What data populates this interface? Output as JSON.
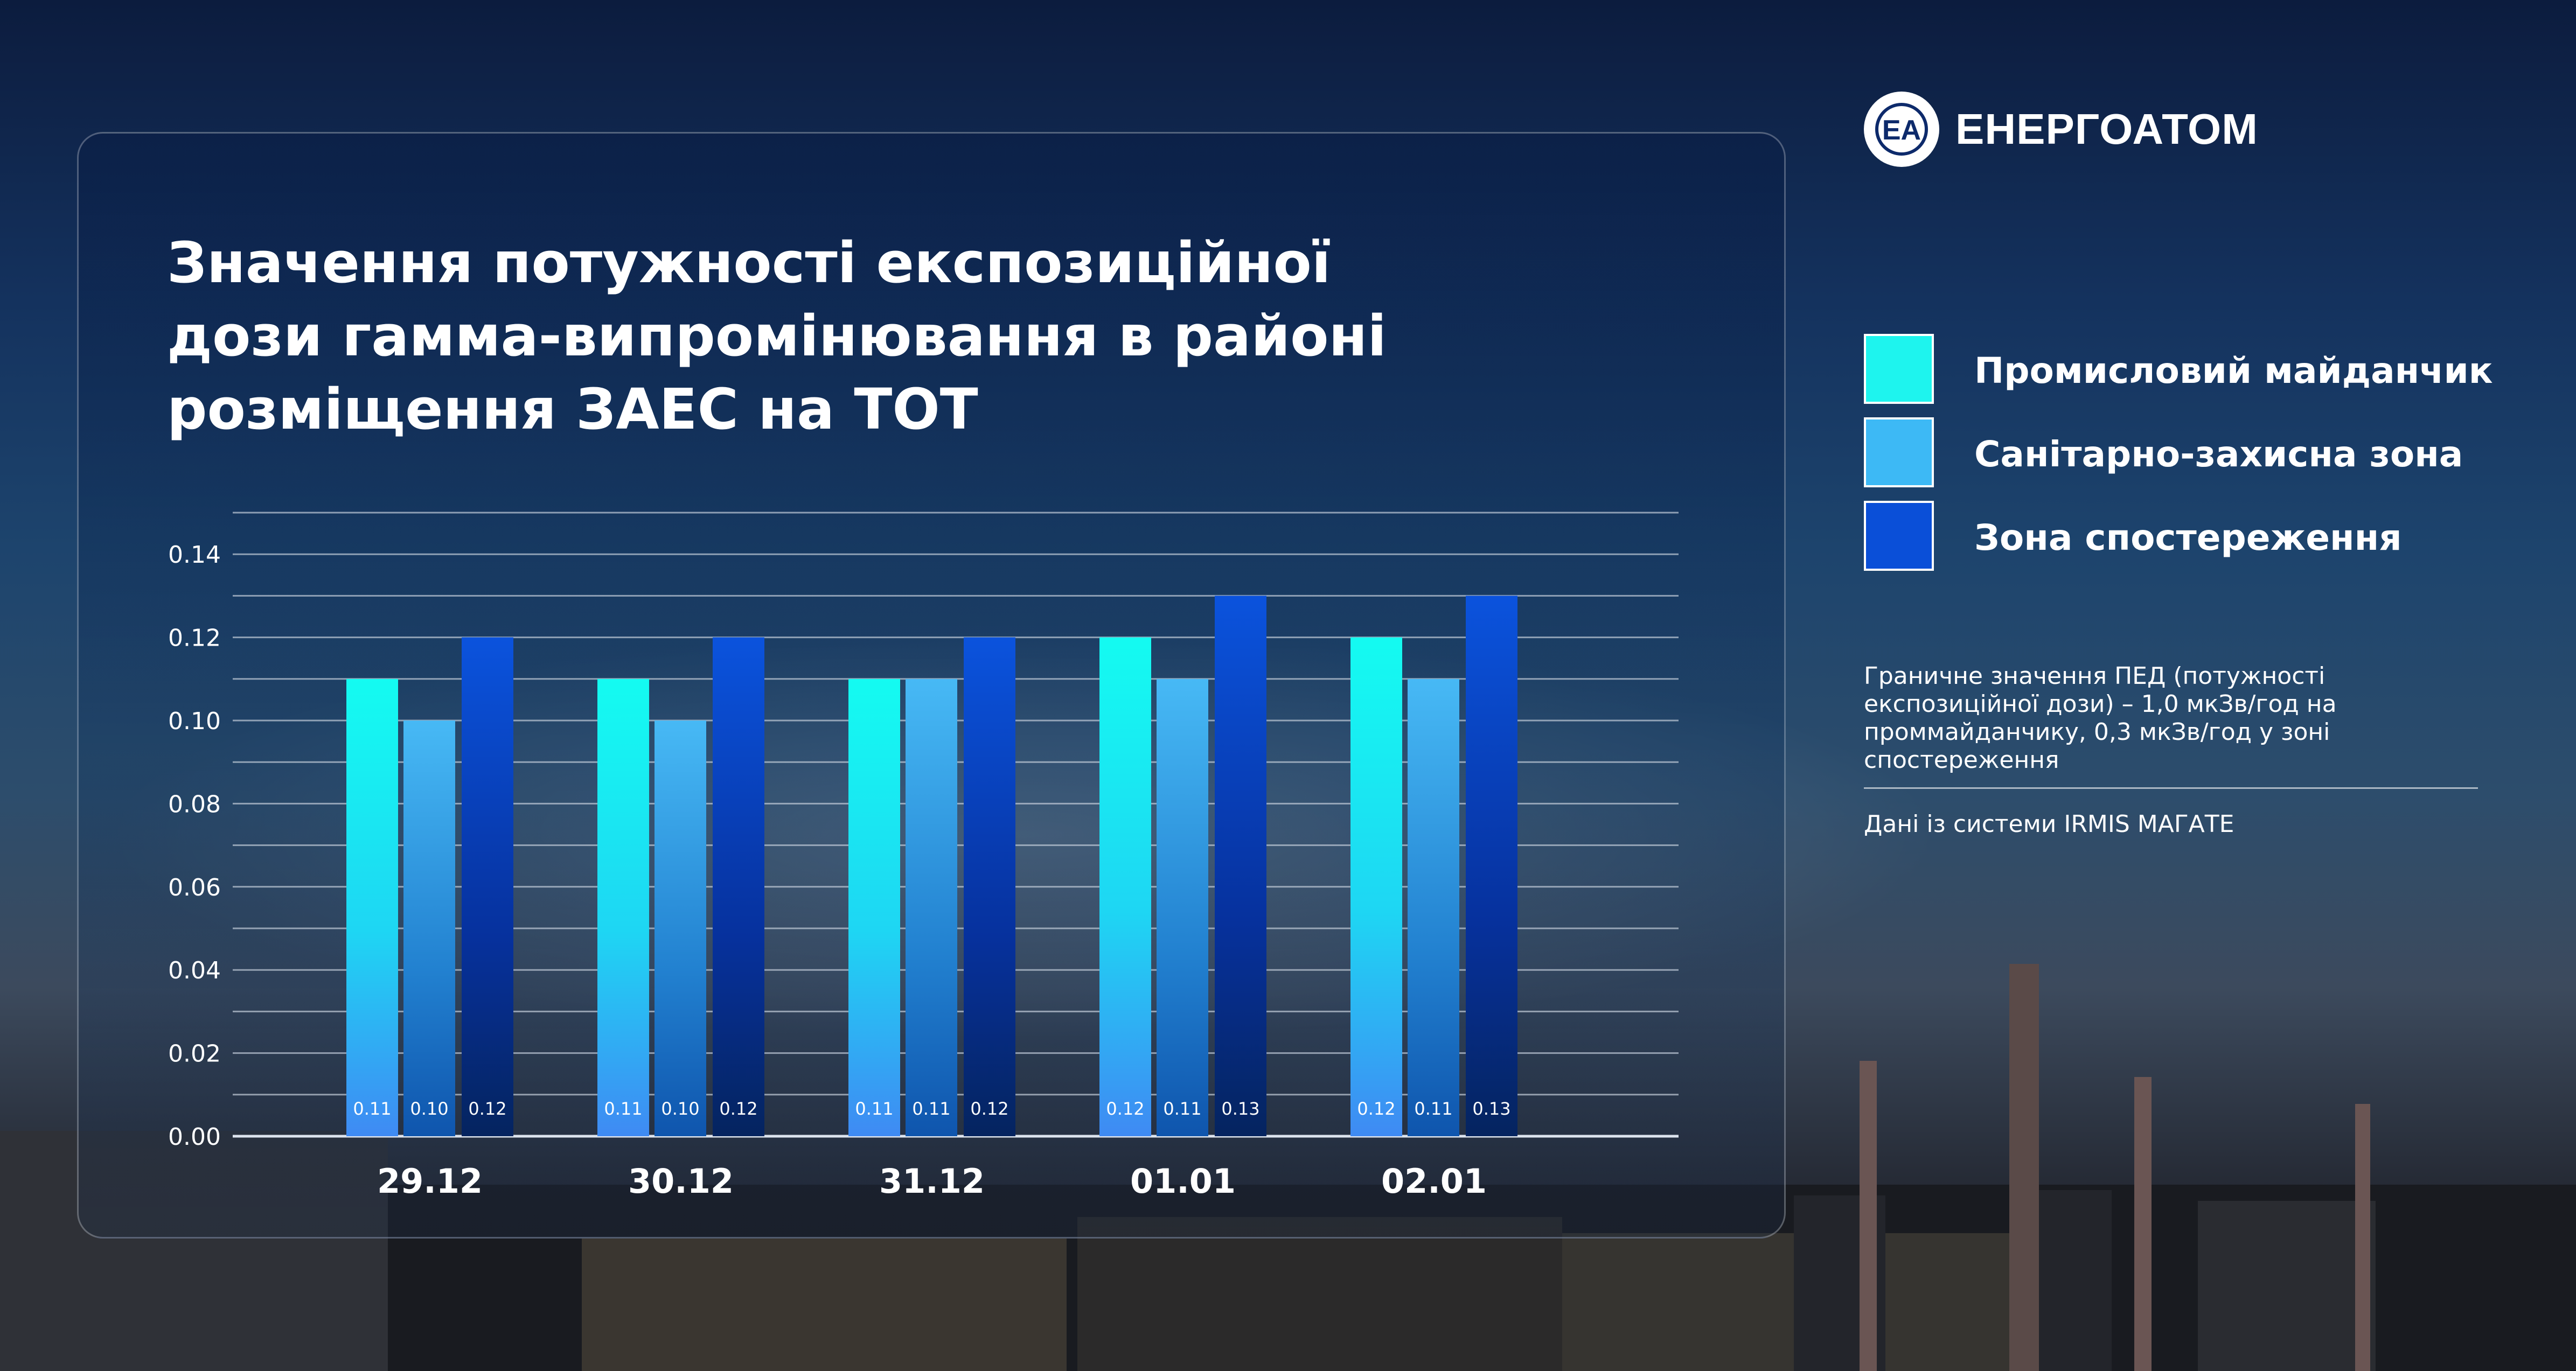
{
  "brand": {
    "name": "ЕНЕРГОАТОМ",
    "mark": "EA",
    "icon": "energoatom-logo-icon"
  },
  "colors": {
    "industrial": "#1ef4ee",
    "sanitary": "#3db9f5",
    "observation": "#0a4fd8",
    "text": "#ffffff"
  },
  "note": "Граничне значення ПЕД (потужності експозиційної дози) – 1,0 мкЗв/год на проммайданчику, 0,3 мкЗв/год у зоні спостереження",
  "source": "Дані із системи IRMIS МАГАТЕ",
  "chart_data": {
    "type": "bar",
    "title": "Значення потужності експозиційної\nдози гамма-випромінювання в районі\nрозміщення ЗАЕС на ТОТ",
    "xlabel": "",
    "ylabel": "",
    "categories": [
      "29.12",
      "30.12",
      "31.12",
      "01.01",
      "02.01"
    ],
    "ylim": [
      0,
      0.15
    ],
    "yticks": [
      0.0,
      0.02,
      0.04,
      0.06,
      0.08,
      0.1,
      0.12,
      0.14
    ],
    "ytick_labels": [
      "0.00",
      "0.02",
      "0.04",
      "0.06",
      "0.08",
      "0.10",
      "0.12",
      "0.14"
    ],
    "grid": true,
    "legend_position": "right",
    "series": [
      {
        "name": "Промисловий майданчик",
        "values": [
          0.11,
          0.11,
          0.11,
          0.12,
          0.12
        ],
        "labels": [
          "0.11",
          "0.11",
          "0.11",
          "0.12",
          "0.12"
        ]
      },
      {
        "name": "Санітарно-захисна зона",
        "values": [
          0.1,
          0.1,
          0.11,
          0.11,
          0.11
        ],
        "labels": [
          "0.10",
          "0.10",
          "0.11",
          "0.11",
          "0.11"
        ]
      },
      {
        "name": "Зона спостереження",
        "values": [
          0.12,
          0.12,
          0.12,
          0.13,
          0.13
        ],
        "labels": [
          "0.12",
          "0.12",
          "0.12",
          "0.13",
          "0.13"
        ]
      }
    ]
  }
}
